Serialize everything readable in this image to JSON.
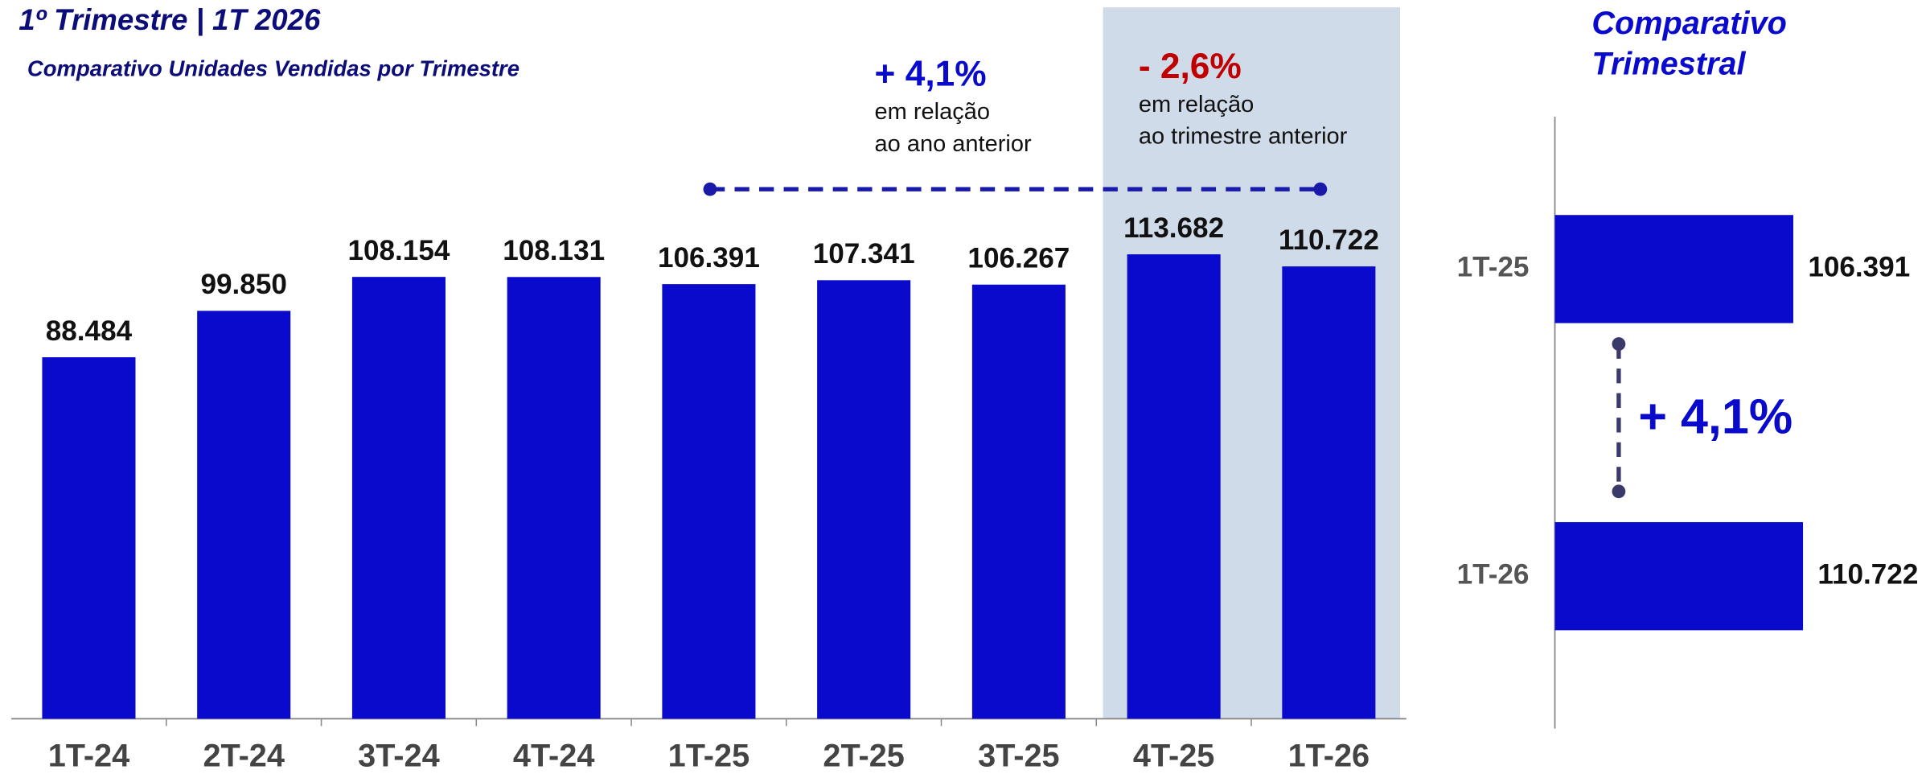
{
  "chart_data": [
    {
      "type": "bar",
      "title": "1º Trimestre | 1T 2026",
      "subtitle": "Comparativo Unidades Vendidas por Trimestre",
      "categories": [
        "1T-24",
        "2T-24",
        "3T-24",
        "4T-24",
        "1T-25",
        "2T-25",
        "3T-25",
        "4T-25",
        "1T-26"
      ],
      "values": [
        88484,
        99850,
        108154,
        108131,
        106391,
        107341,
        106267,
        113682,
        110722
      ],
      "value_labels": [
        "88.484",
        "99.850",
        "108.154",
        "108.131",
        "106.391",
        "107.341",
        "106.267",
        "113.682",
        "110.722"
      ],
      "color": "#0a0acc",
      "ylim": [
        0,
        120000
      ],
      "annotations": [
        "+ 4,1%",
        "em relação",
        "ao ano anterior",
        "- 2,6%",
        "em relação",
        "ao trimestre anterior"
      ]
    },
    {
      "type": "barh",
      "title": "Comparativo Trimestral",
      "categories": [
        "1T-25",
        "1T-26"
      ],
      "values": [
        106391,
        110722
      ],
      "value_labels": [
        "106.391",
        "110.722"
      ],
      "color": "#0a0acc",
      "xlim": [
        0,
        120000
      ],
      "annotations": [
        "+ 4,1%"
      ]
    }
  ]
}
